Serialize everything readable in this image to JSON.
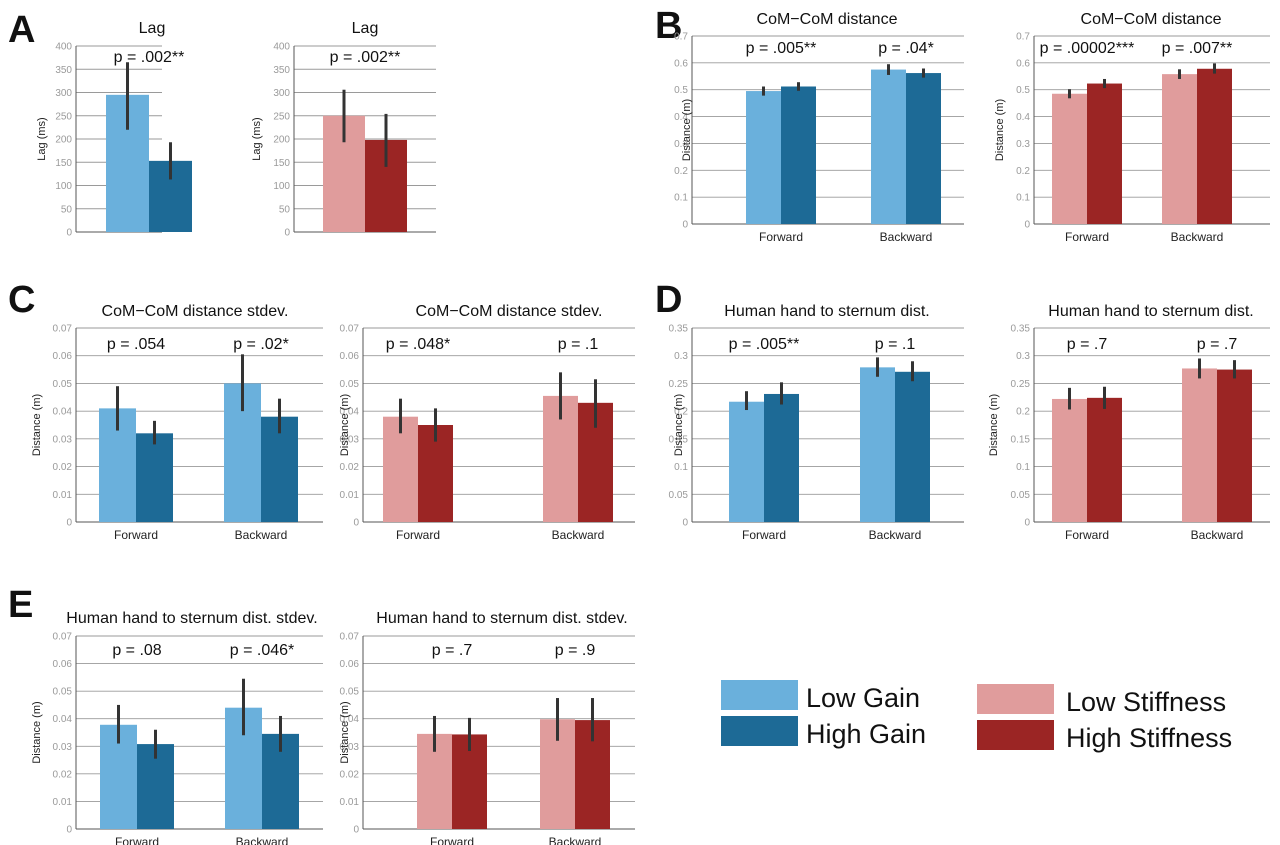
{
  "colors": {
    "low_gain": "#6ab0dc",
    "high_gain": "#1d6a96",
    "low_stiffness": "#e09c9c",
    "high_stiffness": "#9b2524"
  },
  "panel_letters": [
    "A",
    "B",
    "C",
    "D",
    "E"
  ],
  "legend": [
    {
      "label": "Low Gain",
      "color_key": "low_gain"
    },
    {
      "label": "High Gain",
      "color_key": "high_gain"
    },
    {
      "label": "Low Stiffness",
      "color_key": "low_stiffness"
    },
    {
      "label": "High Stiffness",
      "color_key": "high_stiffness"
    }
  ],
  "chart_data": [
    {
      "type": "bar",
      "title": "Lag",
      "ylabel": "Lag (ms)",
      "ylim": [
        0,
        400
      ],
      "ticks": [
        "0",
        "50",
        "100",
        "150",
        "200",
        "250",
        "300",
        "350",
        "400"
      ],
      "categories": [
        ""
      ],
      "p_labels": [
        "p = .002**"
      ],
      "series": [
        {
          "color_key": "low_gain",
          "values": [
            295
          ],
          "err": [
            [
              220,
              365
            ]
          ]
        },
        {
          "color_key": "high_gain",
          "values": [
            153
          ],
          "err": [
            [
              113,
              193
            ]
          ]
        }
      ]
    },
    {
      "type": "bar",
      "title": "Lag",
      "ylabel": "Lag (ms)",
      "ylim": [
        0,
        400
      ],
      "ticks": [
        "0",
        "50",
        "100",
        "150",
        "200",
        "250",
        "300",
        "350",
        "400"
      ],
      "categories": [
        ""
      ],
      "p_labels": [
        "p = .002**"
      ],
      "series": [
        {
          "color_key": "low_stiffness",
          "values": [
            250
          ],
          "err": [
            [
              193,
              306
            ]
          ]
        },
        {
          "color_key": "high_stiffness",
          "values": [
            198
          ],
          "err": [
            [
              140,
              254
            ]
          ]
        }
      ]
    },
    {
      "type": "bar",
      "title": "CoM−CoM distance",
      "ylabel": "Distance (m)",
      "ylim": [
        0,
        0.7
      ],
      "ticks": [
        "0",
        "0.1",
        "0.2",
        "0.3",
        "0.4",
        "0.5",
        "0.6",
        "0.7"
      ],
      "categories": [
        "Forward",
        "Backward"
      ],
      "p_labels": [
        "p = .005**",
        "p = .04*"
      ],
      "series": [
        {
          "color_key": "low_gain",
          "values": [
            0.495,
            0.575
          ],
          "err": [
            [
              0.478,
              0.512
            ],
            [
              0.555,
              0.595
            ]
          ]
        },
        {
          "color_key": "high_gain",
          "values": [
            0.512,
            0.562
          ],
          "err": [
            [
              0.496,
              0.528
            ],
            [
              0.545,
              0.579
            ]
          ]
        }
      ]
    },
    {
      "type": "bar",
      "title": "CoM−CoM distance",
      "ylabel": "Distance (m)",
      "ylim": [
        0,
        0.7
      ],
      "ticks": [
        "0",
        "0.1",
        "0.2",
        "0.3",
        "0.4",
        "0.5",
        "0.6",
        "0.7"
      ],
      "categories": [
        "Forward",
        "Backward"
      ],
      "p_labels": [
        "p = .00002***",
        "p = .007**"
      ],
      "series": [
        {
          "color_key": "low_stiffness",
          "values": [
            0.485,
            0.558
          ],
          "err": [
            [
              0.468,
              0.502
            ],
            [
              0.54,
              0.576
            ]
          ]
        },
        {
          "color_key": "high_stiffness",
          "values": [
            0.523,
            0.578
          ],
          "err": [
            [
              0.506,
              0.54
            ],
            [
              0.56,
              0.598
            ]
          ]
        }
      ]
    },
    {
      "type": "bar",
      "title": "CoM−CoM distance stdev.",
      "ylabel": "Distance (m)",
      "ylim": [
        0,
        0.07
      ],
      "ticks": [
        "0",
        "0.01",
        "0.02",
        "0.03",
        "0.04",
        "0.05",
        "0.06",
        "0.07"
      ],
      "categories": [
        "Forward",
        "Backward"
      ],
      "p_labels": [
        "p = .054",
        "p = .02*"
      ],
      "series": [
        {
          "color_key": "low_gain",
          "values": [
            0.041,
            0.05
          ],
          "err": [
            [
              0.033,
              0.049
            ],
            [
              0.04,
              0.0605
            ]
          ]
        },
        {
          "color_key": "high_gain",
          "values": [
            0.032,
            0.038
          ],
          "err": [
            [
              0.028,
              0.0365
            ],
            [
              0.032,
              0.0445
            ]
          ]
        }
      ]
    },
    {
      "type": "bar",
      "title": "CoM−CoM distance stdev.",
      "ylabel": "Distance (m)",
      "ylim": [
        0,
        0.07
      ],
      "ticks": [
        "0",
        "0.01",
        "0.02",
        "0.03",
        "0.04",
        "0.05",
        "0.06",
        "0.07"
      ],
      "categories": [
        "Forward",
        "Backward"
      ],
      "p_labels": [
        "p = .048*",
        "p = .1"
      ],
      "series": [
        {
          "color_key": "low_stiffness",
          "values": [
            0.038,
            0.0455
          ],
          "err": [
            [
              0.032,
              0.0445
            ],
            [
              0.037,
              0.054
            ]
          ]
        },
        {
          "color_key": "high_stiffness",
          "values": [
            0.035,
            0.043
          ],
          "err": [
            [
              0.029,
              0.041
            ],
            [
              0.034,
              0.0515
            ]
          ]
        }
      ]
    },
    {
      "type": "bar",
      "title": "Human hand to sternum dist.",
      "ylabel": "Distance (m)",
      "ylim": [
        0,
        0.35
      ],
      "ticks": [
        "0",
        "0.05",
        "0.1",
        "0.15",
        "0.2",
        "0.25",
        "0.3",
        "0.35"
      ],
      "categories": [
        "Forward",
        "Backward"
      ],
      "p_labels": [
        "p = .005**",
        "p = .1"
      ],
      "series": [
        {
          "color_key": "low_gain",
          "values": [
            0.217,
            0.279
          ],
          "err": [
            [
              0.202,
              0.236
            ],
            [
              0.262,
              0.297
            ]
          ]
        },
        {
          "color_key": "high_gain",
          "values": [
            0.231,
            0.271
          ],
          "err": [
            [
              0.212,
              0.252
            ],
            [
              0.254,
              0.29
            ]
          ]
        }
      ]
    },
    {
      "type": "bar",
      "title": "Human hand to sternum dist.",
      "ylabel": "Distance (m)",
      "ylim": [
        0,
        0.35
      ],
      "ticks": [
        "0",
        "0.05",
        "0.1",
        "0.15",
        "0.2",
        "0.25",
        "0.3",
        "0.35"
      ],
      "categories": [
        "Forward",
        "Backward"
      ],
      "p_labels": [
        "p = .7",
        "p = .7"
      ],
      "series": [
        {
          "color_key": "low_stiffness",
          "values": [
            0.222,
            0.277
          ],
          "err": [
            [
              0.203,
              0.242
            ],
            [
              0.259,
              0.295
            ]
          ]
        },
        {
          "color_key": "high_stiffness",
          "values": [
            0.224,
            0.275
          ],
          "err": [
            [
              0.204,
              0.244
            ],
            [
              0.259,
              0.292
            ]
          ]
        }
      ]
    },
    {
      "type": "bar",
      "title": "Human hand to sternum dist. stdev.",
      "ylabel": "Distance (m)",
      "ylim": [
        0,
        0.07
      ],
      "ticks": [
        "0",
        "0.01",
        "0.02",
        "0.03",
        "0.04",
        "0.05",
        "0.06",
        "0.07"
      ],
      "categories": [
        "Forward",
        "Backward"
      ],
      "p_labels": [
        "p = .08",
        "p = .046*"
      ],
      "series": [
        {
          "color_key": "low_gain",
          "values": [
            0.0378,
            0.044
          ],
          "err": [
            [
              0.031,
              0.045
            ],
            [
              0.034,
              0.0545
            ]
          ]
        },
        {
          "color_key": "high_gain",
          "values": [
            0.0308,
            0.0345
          ],
          "err": [
            [
              0.0255,
              0.036
            ],
            [
              0.028,
              0.041
            ]
          ]
        }
      ]
    },
    {
      "type": "bar",
      "title": "Human hand to sternum dist. stdev.",
      "ylabel": "Distance (m)",
      "ylim": [
        0,
        0.07
      ],
      "ticks": [
        "0",
        "0.01",
        "0.02",
        "0.03",
        "0.04",
        "0.05",
        "0.06",
        "0.07"
      ],
      "categories": [
        "Forward",
        "Backward"
      ],
      "p_labels": [
        "p = .7",
        "p = .9"
      ],
      "series": [
        {
          "color_key": "low_stiffness",
          "values": [
            0.0345,
            0.0398
          ],
          "err": [
            [
              0.028,
              0.041
            ],
            [
              0.032,
              0.0475
            ]
          ]
        },
        {
          "color_key": "high_stiffness",
          "values": [
            0.0343,
            0.0395
          ],
          "err": [
            [
              0.0283,
              0.0403
            ],
            [
              0.0318,
              0.0475
            ]
          ]
        }
      ]
    }
  ]
}
